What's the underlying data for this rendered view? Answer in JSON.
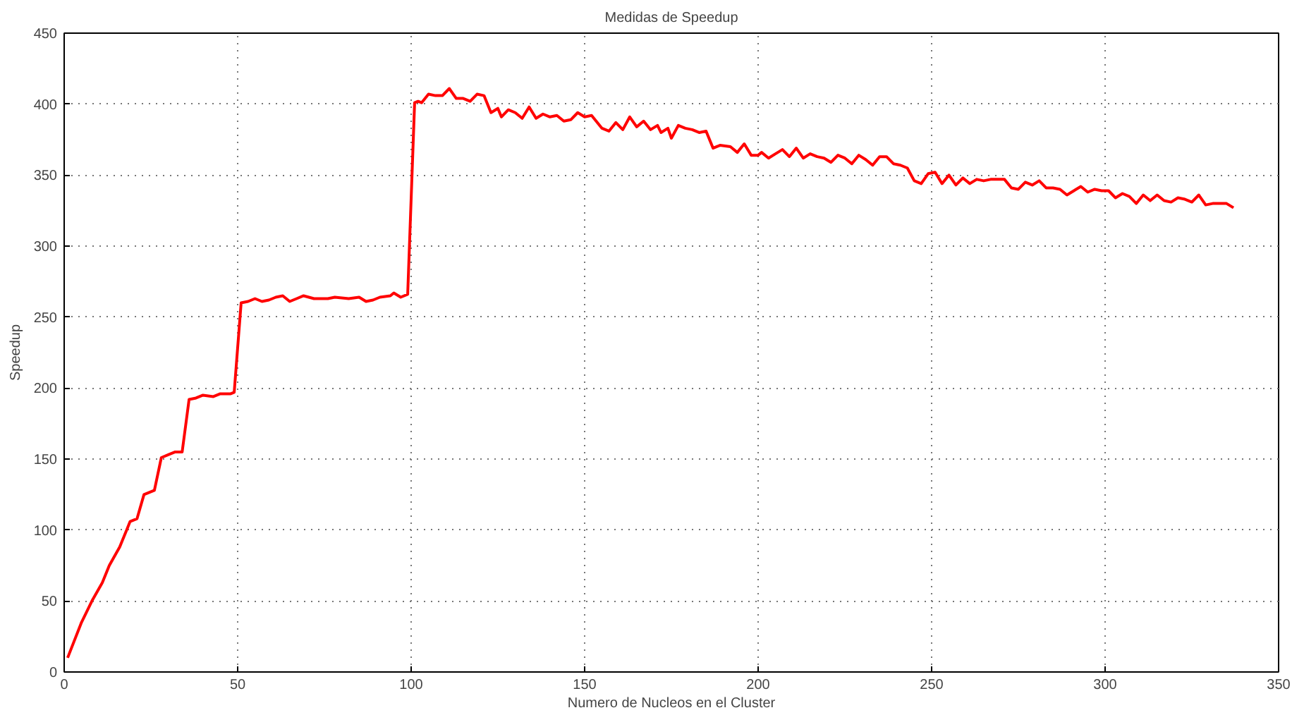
{
  "chart_data": {
    "type": "line",
    "title": "Medidas de Speedup",
    "xlabel": "Numero de Nucleos en el Cluster",
    "ylabel": "Speedup",
    "x": [
      1,
      5,
      8,
      11,
      13,
      16,
      18,
      19,
      21,
      23,
      26,
      28,
      30,
      32,
      34,
      36,
      38,
      40,
      43,
      45,
      48,
      49,
      51,
      53,
      55,
      57,
      59,
      61,
      63,
      65,
      67,
      69,
      72,
      76,
      78,
      82,
      85,
      87,
      89,
      91,
      94,
      95,
      97,
      99,
      101,
      102,
      103,
      105,
      107,
      109,
      111,
      113,
      115,
      117,
      119,
      121,
      123,
      125,
      126,
      128,
      130,
      132,
      134,
      136,
      138,
      140,
      142,
      144,
      146,
      148,
      150,
      152,
      155,
      157,
      159,
      161,
      163,
      165,
      167,
      169,
      171,
      172,
      174,
      175,
      177,
      179,
      181,
      183,
      185,
      187,
      189,
      192,
      194,
      196,
      198,
      200,
      201,
      203,
      205,
      207,
      209,
      211,
      213,
      215,
      217,
      219,
      221,
      223,
      225,
      227,
      229,
      231,
      233,
      235,
      237,
      239,
      241,
      243,
      245,
      247,
      249,
      251,
      253,
      255,
      257,
      259,
      261,
      263,
      265,
      267,
      269,
      271,
      273,
      275,
      277,
      279,
      281,
      283,
      285,
      287,
      289,
      291,
      293,
      295,
      297,
      299,
      301,
      303,
      305,
      307,
      309,
      311,
      313,
      315,
      317,
      319,
      321,
      323,
      325,
      327,
      329,
      331,
      333,
      335,
      337
    ],
    "series": [
      {
        "color": "#ff0000",
        "values": [
          10,
          35,
          50,
          63,
          75,
          88,
          100,
          106,
          108,
          125,
          128,
          151,
          153,
          155,
          155,
          192,
          193,
          195,
          194,
          196,
          196,
          197,
          260,
          261,
          263,
          261,
          262,
          264,
          265,
          261,
          263,
          265,
          263,
          263,
          264,
          263,
          264,
          261,
          262,
          264,
          265,
          267,
          264,
          266,
          401,
          402,
          401,
          407,
          406,
          406,
          411,
          404,
          404,
          402,
          407,
          406,
          394,
          397,
          391,
          396,
          394,
          390,
          398,
          390,
          393,
          391,
          392,
          388,
          389,
          394,
          391,
          392,
          383,
          381,
          387,
          382,
          391,
          384,
          388,
          382,
          385,
          380,
          383,
          376,
          385,
          383,
          382,
          380,
          381,
          369,
          371,
          370,
          366,
          372,
          364,
          364,
          366,
          362,
          365,
          368,
          363,
          369,
          362,
          365,
          363,
          362,
          359,
          364,
          362,
          358,
          364,
          361,
          357,
          363,
          363,
          358,
          357,
          355,
          346,
          344,
          351,
          352,
          344,
          350,
          343,
          348,
          344,
          347,
          346,
          347,
          347,
          347,
          341,
          340,
          345,
          343,
          346,
          341,
          341,
          340,
          336,
          339,
          342,
          338,
          340,
          339,
          339,
          334,
          337,
          335,
          330,
          336,
          332,
          336,
          332,
          331,
          334,
          333,
          331,
          336,
          329,
          330,
          330,
          330,
          327
        ]
      }
    ],
    "xlim": [
      0,
      350
    ],
    "ylim": [
      0,
      450
    ],
    "xticks": [
      0,
      50,
      100,
      150,
      200,
      250,
      300,
      350
    ],
    "yticks": [
      0,
      50,
      100,
      150,
      200,
      250,
      300,
      350,
      400,
      450
    ],
    "grid": true,
    "line_style": "solid",
    "marker": "none"
  }
}
